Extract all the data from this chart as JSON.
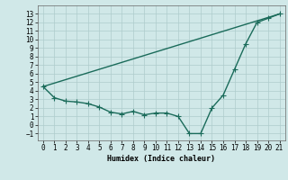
{
  "title": "",
  "xlabel": "Humidex (Indice chaleur)",
  "ylabel": "",
  "x_values": [
    0,
    1,
    2,
    3,
    4,
    5,
    6,
    7,
    8,
    9,
    10,
    11,
    12,
    13,
    14,
    15,
    16,
    17,
    18,
    19,
    20,
    21
  ],
  "line1_y": [
    4.5,
    3.2,
    2.8,
    2.7,
    2.5,
    2.1,
    1.5,
    1.3,
    1.6,
    1.2,
    1.4,
    1.4,
    1.0,
    -1.0,
    -1.0,
    2.0,
    3.5,
    6.5,
    9.5,
    12.0,
    12.5,
    13.0
  ],
  "line_color": "#1a6b5a",
  "background_color": "#d0e8e8",
  "grid_color": "#aecccc",
  "xlim": [
    -0.5,
    21.5
  ],
  "ylim": [
    -1.8,
    14.0
  ],
  "yticks": [
    -1,
    0,
    1,
    2,
    3,
    4,
    5,
    6,
    7,
    8,
    9,
    10,
    11,
    12,
    13
  ],
  "xticks": [
    0,
    1,
    2,
    3,
    4,
    5,
    6,
    7,
    8,
    9,
    10,
    11,
    12,
    13,
    14,
    15,
    16,
    17,
    18,
    19,
    20,
    21
  ],
  "marker": "+",
  "markersize": 4,
  "linewidth": 1.0,
  "straight_line_x": [
    0,
    21
  ],
  "straight_line_y": [
    4.5,
    13.0
  ],
  "tick_fontsize": 5.5,
  "xlabel_fontsize": 6.0
}
